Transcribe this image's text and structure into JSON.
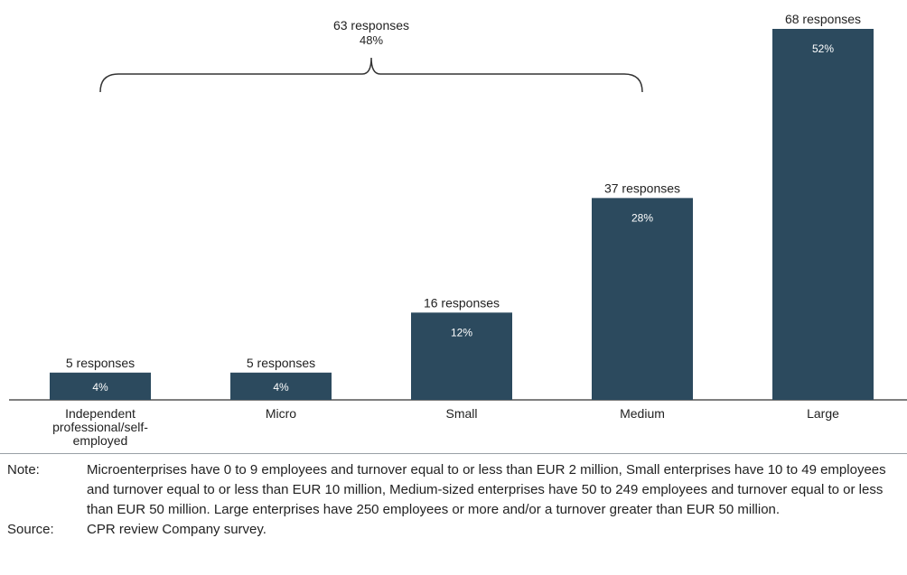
{
  "chart_data": {
    "type": "bar",
    "categories": [
      "Independent professional/self-employed",
      "Micro",
      "Small",
      "Medium",
      "Large"
    ],
    "category_lines": [
      [
        "Independent",
        "professional/self-",
        "employed"
      ],
      [
        "Micro"
      ],
      [
        "Small"
      ],
      [
        "Medium"
      ],
      [
        "Large"
      ]
    ],
    "responses": [
      5,
      5,
      16,
      37,
      68
    ],
    "response_labels": [
      "5 responses",
      "5 responses",
      "16 responses",
      "37 responses",
      "68 responses"
    ],
    "values": [
      4,
      4,
      12,
      28,
      52
    ],
    "value_labels": [
      "4%",
      "4%",
      "12%",
      "28%",
      "52%"
    ],
    "bar_color": "#2c4a5e",
    "brace": {
      "spans": [
        "Independent professional/self-employed",
        "Medium"
      ],
      "label_line1": "63 responses",
      "label_line2": "48%"
    },
    "ylim": [
      0,
      68
    ],
    "grid": false,
    "legend": "none"
  },
  "notes": [
    {
      "key": "Note:",
      "text": "Microenterprises have 0 to 9 employees and turnover equal to or less than EUR 2 million, Small enterprises have 10 to 49 employees and turnover equal to or less than EUR 10 million, Medium-sized enterprises have 50 to 249 employees and turnover equal to or less than EUR 50 million. Large enterprises have 250 employees or more and/or a turnover greater than EUR 50 million."
    },
    {
      "key": "Source:",
      "text": "CPR review Company survey."
    }
  ]
}
